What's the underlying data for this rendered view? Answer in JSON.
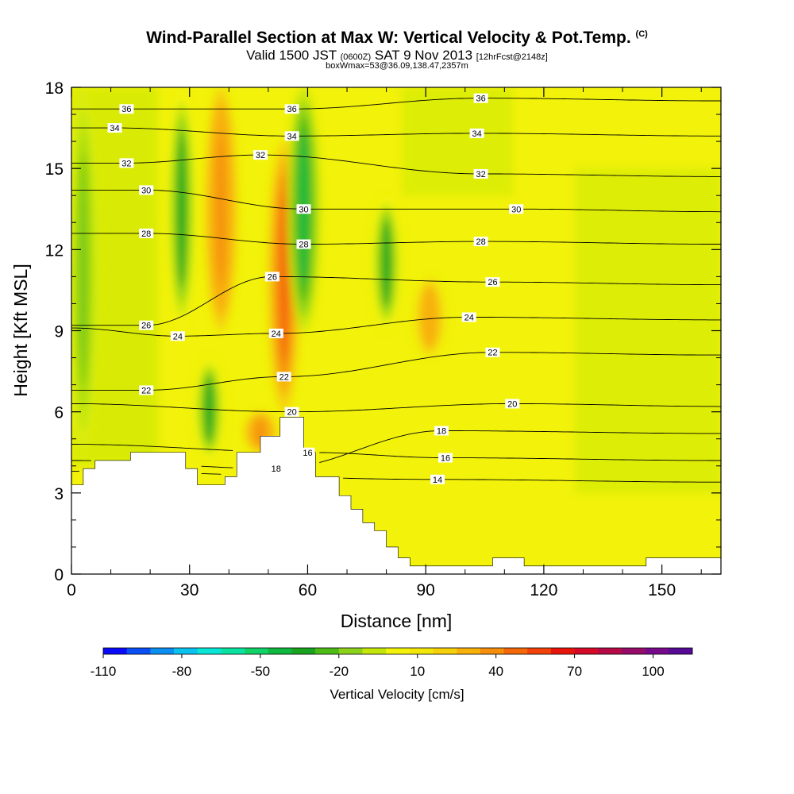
{
  "header": {
    "title": "Wind-Parallel Section at Max W: Vertical Velocity & Pot.Temp.",
    "title_mark": "(C)",
    "valid_prefix": "Valid 1500 JST",
    "valid_zulu": "(0600Z)",
    "valid_date": "SAT 9 Nov 2013",
    "forecast": "[12hrFcst@2148z]",
    "box_info": "boxWmax=53@36.09,138.47,2357m"
  },
  "chart_data": {
    "type": "heatmap",
    "title": "Wind-Parallel Section at Max W: Vertical Velocity & Pot.Temp.",
    "xlabel": "Distance [nm]",
    "ylabel": "Height [Kft MSL]",
    "xlim": [
      0,
      165
    ],
    "ylim": [
      0,
      18
    ],
    "xticks": [
      0,
      30,
      60,
      90,
      120,
      150
    ],
    "yticks": [
      0,
      3,
      6,
      9,
      12,
      15,
      18
    ],
    "grid": false,
    "terrain_profile": {
      "x": [
        0,
        3,
        3,
        6,
        6,
        15,
        15,
        29,
        29,
        32,
        32,
        39,
        39,
        42,
        42,
        48,
        48,
        53,
        53,
        59,
        59,
        62,
        62,
        68,
        68,
        71,
        71,
        74,
        74,
        77,
        77,
        80,
        80,
        83,
        83,
        86,
        86,
        107,
        107,
        115,
        115,
        146,
        146,
        165
      ],
      "height": [
        3.3,
        3.3,
        3.9,
        3.9,
        4.2,
        4.2,
        4.5,
        4.5,
        3.9,
        3.9,
        3.3,
        3.3,
        3.6,
        3.6,
        4.5,
        4.5,
        5.1,
        5.1,
        5.8,
        5.8,
        4.5,
        4.5,
        3.6,
        3.6,
        2.9,
        2.9,
        2.4,
        2.4,
        1.9,
        1.9,
        1.6,
        1.6,
        1.0,
        1.0,
        0.6,
        0.6,
        0.3,
        0.3,
        0.6,
        0.6,
        0.3,
        0.3,
        0.6,
        0.6
      ]
    },
    "vertical_velocity_fill": {
      "units": "cm/s",
      "background_value": 10,
      "features": [
        {
          "sign": "downdraft",
          "x_center": 3,
          "z_range": [
            4.5,
            18
          ],
          "peak": -30
        },
        {
          "sign": "downdraft",
          "x_center": 28,
          "z_range": [
            9,
            18
          ],
          "peak": -30
        },
        {
          "sign": "downdraft",
          "x_center": 35,
          "z_range": [
            4.2,
            8
          ],
          "peak": -30
        },
        {
          "sign": "updraft",
          "x_center": 38,
          "z_range": [
            9,
            18
          ],
          "peak": 40
        },
        {
          "sign": "updraft",
          "x_center": 48,
          "z_range": [
            4.5,
            6
          ],
          "peak": 40
        },
        {
          "sign": "updraft",
          "x_center": 54,
          "z_range": [
            6,
            16
          ],
          "peak": 50
        },
        {
          "sign": "downdraft",
          "x_center": 59,
          "z_range": [
            9,
            18
          ],
          "peak": -40
        },
        {
          "sign": "downdraft",
          "x_center": 80,
          "z_range": [
            9,
            14
          ],
          "peak": -30
        },
        {
          "sign": "updraft",
          "x_center": 91,
          "z_range": [
            8,
            11
          ],
          "peak": 30
        }
      ]
    },
    "contours": {
      "field": "Potential Temperature",
      "units": "C",
      "levels": [
        14,
        16,
        18,
        20,
        22,
        24,
        26,
        28,
        30,
        32,
        34,
        36
      ],
      "labeled": [
        {
          "level": 36,
          "x": 14,
          "z": 17.2
        },
        {
          "level": 34,
          "x": 11,
          "z": 16.5
        },
        {
          "level": 32,
          "x": 14,
          "z": 15.2
        },
        {
          "level": 30,
          "x": 19,
          "z": 14.2
        },
        {
          "level": 28,
          "x": 19,
          "z": 12.6
        },
        {
          "level": 26,
          "x": 19,
          "z": 9.2
        },
        {
          "level": 24,
          "x": 27,
          "z": 8.8
        },
        {
          "level": 22,
          "x": 19,
          "z": 6.8
        },
        {
          "level": 36,
          "x": 56,
          "z": 17.2
        },
        {
          "level": 34,
          "x": 56,
          "z": 16.2
        },
        {
          "level": 32,
          "x": 48,
          "z": 15.5
        },
        {
          "level": 30,
          "x": 59,
          "z": 13.5
        },
        {
          "level": 28,
          "x": 59,
          "z": 12.2
        },
        {
          "level": 26,
          "x": 51,
          "z": 11
        },
        {
          "level": 24,
          "x": 52,
          "z": 8.9
        },
        {
          "level": 22,
          "x": 54,
          "z": 7.3
        },
        {
          "level": 20,
          "x": 56,
          "z": 6
        },
        {
          "level": 18,
          "x": 52,
          "z": 3.9
        },
        {
          "level": 16,
          "x": 60,
          "z": 4.5
        },
        {
          "level": 36,
          "x": 104,
          "z": 17.6
        },
        {
          "level": 34,
          "x": 103,
          "z": 16.3
        },
        {
          "level": 32,
          "x": 104,
          "z": 14.8
        },
        {
          "level": 30,
          "x": 113,
          "z": 13.5
        },
        {
          "level": 28,
          "x": 104,
          "z": 12.3
        },
        {
          "level": 26,
          "x": 107,
          "z": 10.8
        },
        {
          "level": 24,
          "x": 101,
          "z": 9.5
        },
        {
          "level": 22,
          "x": 107,
          "z": 8.2
        },
        {
          "level": 20,
          "x": 112,
          "z": 6.3
        },
        {
          "level": 18,
          "x": 94,
          "z": 5.3
        },
        {
          "level": 16,
          "x": 95,
          "z": 4.3
        },
        {
          "level": 14,
          "x": 93,
          "z": 3.5
        }
      ]
    },
    "colorbar": {
      "title": "Vertical Velocity [cm/s]",
      "tick_labels": [
        "-110",
        "-80",
        "-50",
        "-20",
        "10",
        "40",
        "70",
        "100"
      ],
      "tick_values": [
        -110,
        -80,
        -50,
        -20,
        10,
        40,
        70,
        100
      ],
      "colors": [
        "#0a0afa",
        "#0a4ef6",
        "#0a8ef0",
        "#0ac2ee",
        "#09e6d6",
        "#0ae2a0",
        "#11d266",
        "#0fb83e",
        "#18a41e",
        "#4cbb16",
        "#8cd21a",
        "#c4e60a",
        "#f2f20a",
        "#f2e60a",
        "#f6d00a",
        "#f8b00a",
        "#f68e0a",
        "#f4680a",
        "#f2420a",
        "#e8140a",
        "#d40a28",
        "#b60a46",
        "#960a6a",
        "#760a8a",
        "#560a96"
      ]
    }
  }
}
